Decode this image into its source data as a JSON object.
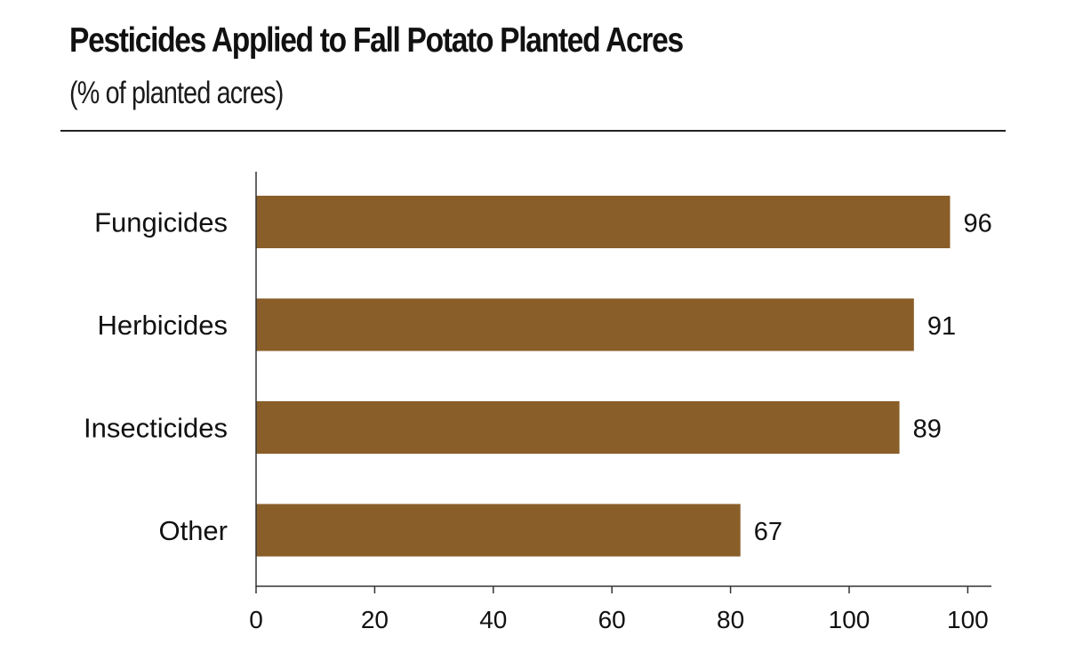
{
  "chart_data": {
    "type": "bar",
    "orientation": "horizontal",
    "title": "Pesticides Applied to Fall Potato Planted Acres",
    "subtitle": "(% of planted acres)",
    "categories": [
      "Fungicides",
      "Herbicides",
      "Insecticides",
      "Other"
    ],
    "values": [
      96,
      91,
      89,
      67
    ],
    "x_tick_labels": [
      "0",
      "20",
      "40",
      "60",
      "80",
      "100",
      "100"
    ],
    "xlim": [
      0,
      120
    ],
    "grid": false,
    "legend": "none",
    "bar_color": "#8a5e28"
  }
}
